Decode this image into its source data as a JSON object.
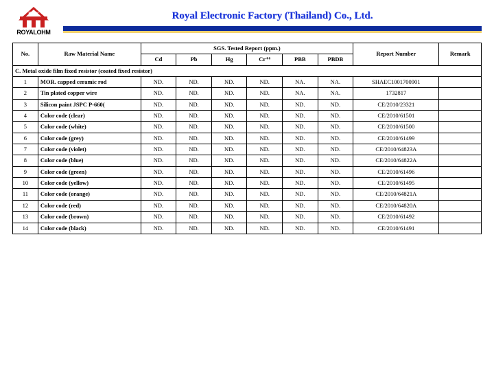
{
  "header": {
    "logo_text": "ROYALOHM",
    "company_title": "Royal Electronic Factory (Thailand) Co., Ltd."
  },
  "table": {
    "head": {
      "no": "No.",
      "raw_material": "Raw Material Name",
      "sgs_group": "SGS. Tested Report (ppm.)",
      "report_no": "Report Number",
      "remark": "Remark",
      "tests": [
        "Cd",
        "Pb",
        "Hg",
        "Cr⁺⁶",
        "PBB",
        "PBDB"
      ]
    },
    "section_label": "C. Metal oxide film fixed resistor (coated fixed resistor)",
    "rows": [
      {
        "no": "1",
        "name": "MOR. capped ceramic rod",
        "vals": [
          "ND.",
          "ND.",
          "ND.",
          "ND.",
          "NA.",
          "NA."
        ],
        "report": "SHAEC1001700901"
      },
      {
        "no": "2",
        "name": "Tin plated copper wire",
        "vals": [
          "ND.",
          "ND.",
          "ND.",
          "ND.",
          "NA.",
          "NA."
        ],
        "report": "1732817"
      },
      {
        "no": "3",
        "name": "Silicon paint JSPC P-660(",
        "vals": [
          "ND.",
          "ND.",
          "ND.",
          "ND.",
          "ND.",
          "ND."
        ],
        "report": "CE/2010/23321"
      },
      {
        "no": "4",
        "name": "Color code (clear)",
        "vals": [
          "ND.",
          "ND.",
          "ND.",
          "ND.",
          "ND.",
          "ND."
        ],
        "report": "CE/2010/61501"
      },
      {
        "no": "5",
        "name": "Color code (white)",
        "vals": [
          "ND.",
          "ND.",
          "ND.",
          "ND.",
          "ND.",
          "ND."
        ],
        "report": "CE/2010/61500"
      },
      {
        "no": "6",
        "name": "Color code (grey)",
        "vals": [
          "ND.",
          "ND.",
          "ND.",
          "ND.",
          "ND.",
          "ND."
        ],
        "report": "CE/2010/61499"
      },
      {
        "no": "7",
        "name": "Color code (violet)",
        "vals": [
          "ND.",
          "ND.",
          "ND.",
          "ND.",
          "ND.",
          "ND."
        ],
        "report": "CE/2010/64823A"
      },
      {
        "no": "8",
        "name": "Color code (blue)",
        "vals": [
          "ND.",
          "ND.",
          "ND.",
          "ND.",
          "ND.",
          "ND."
        ],
        "report": "CE/2010/64822A"
      },
      {
        "no": "9",
        "name": "Color code (green)",
        "vals": [
          "ND.",
          "ND.",
          "ND.",
          "ND.",
          "ND.",
          "ND."
        ],
        "report": "CE/2010/61496"
      },
      {
        "no": "10",
        "name": "Color code (yellow)",
        "vals": [
          "ND.",
          "ND.",
          "ND.",
          "ND.",
          "ND.",
          "ND."
        ],
        "report": "CE/2010/61495"
      },
      {
        "no": "11",
        "name": "Color code (orange)",
        "vals": [
          "ND.",
          "ND.",
          "ND.",
          "ND.",
          "ND.",
          "ND."
        ],
        "report": "CE/2010/64821A"
      },
      {
        "no": "12",
        "name": "Color code (red)",
        "vals": [
          "ND.",
          "ND.",
          "ND.",
          "ND.",
          "ND.",
          "ND."
        ],
        "report": "CE/2010/64820A"
      },
      {
        "no": "13",
        "name": "Color code (brown)",
        "vals": [
          "ND.",
          "ND.",
          "ND.",
          "ND.",
          "ND.",
          "ND."
        ],
        "report": "CE/2010/61492"
      },
      {
        "no": "14",
        "name": "Color code (black)",
        "vals": [
          "ND.",
          "ND.",
          "ND.",
          "ND.",
          "ND.",
          "ND."
        ],
        "report": "CE/2010/61491"
      }
    ]
  },
  "colors": {
    "title_color": "#1a33d6",
    "bar_primary": "#0d2b9b",
    "bar_accent": "#f2d16e",
    "logo_red": "#c92020"
  }
}
